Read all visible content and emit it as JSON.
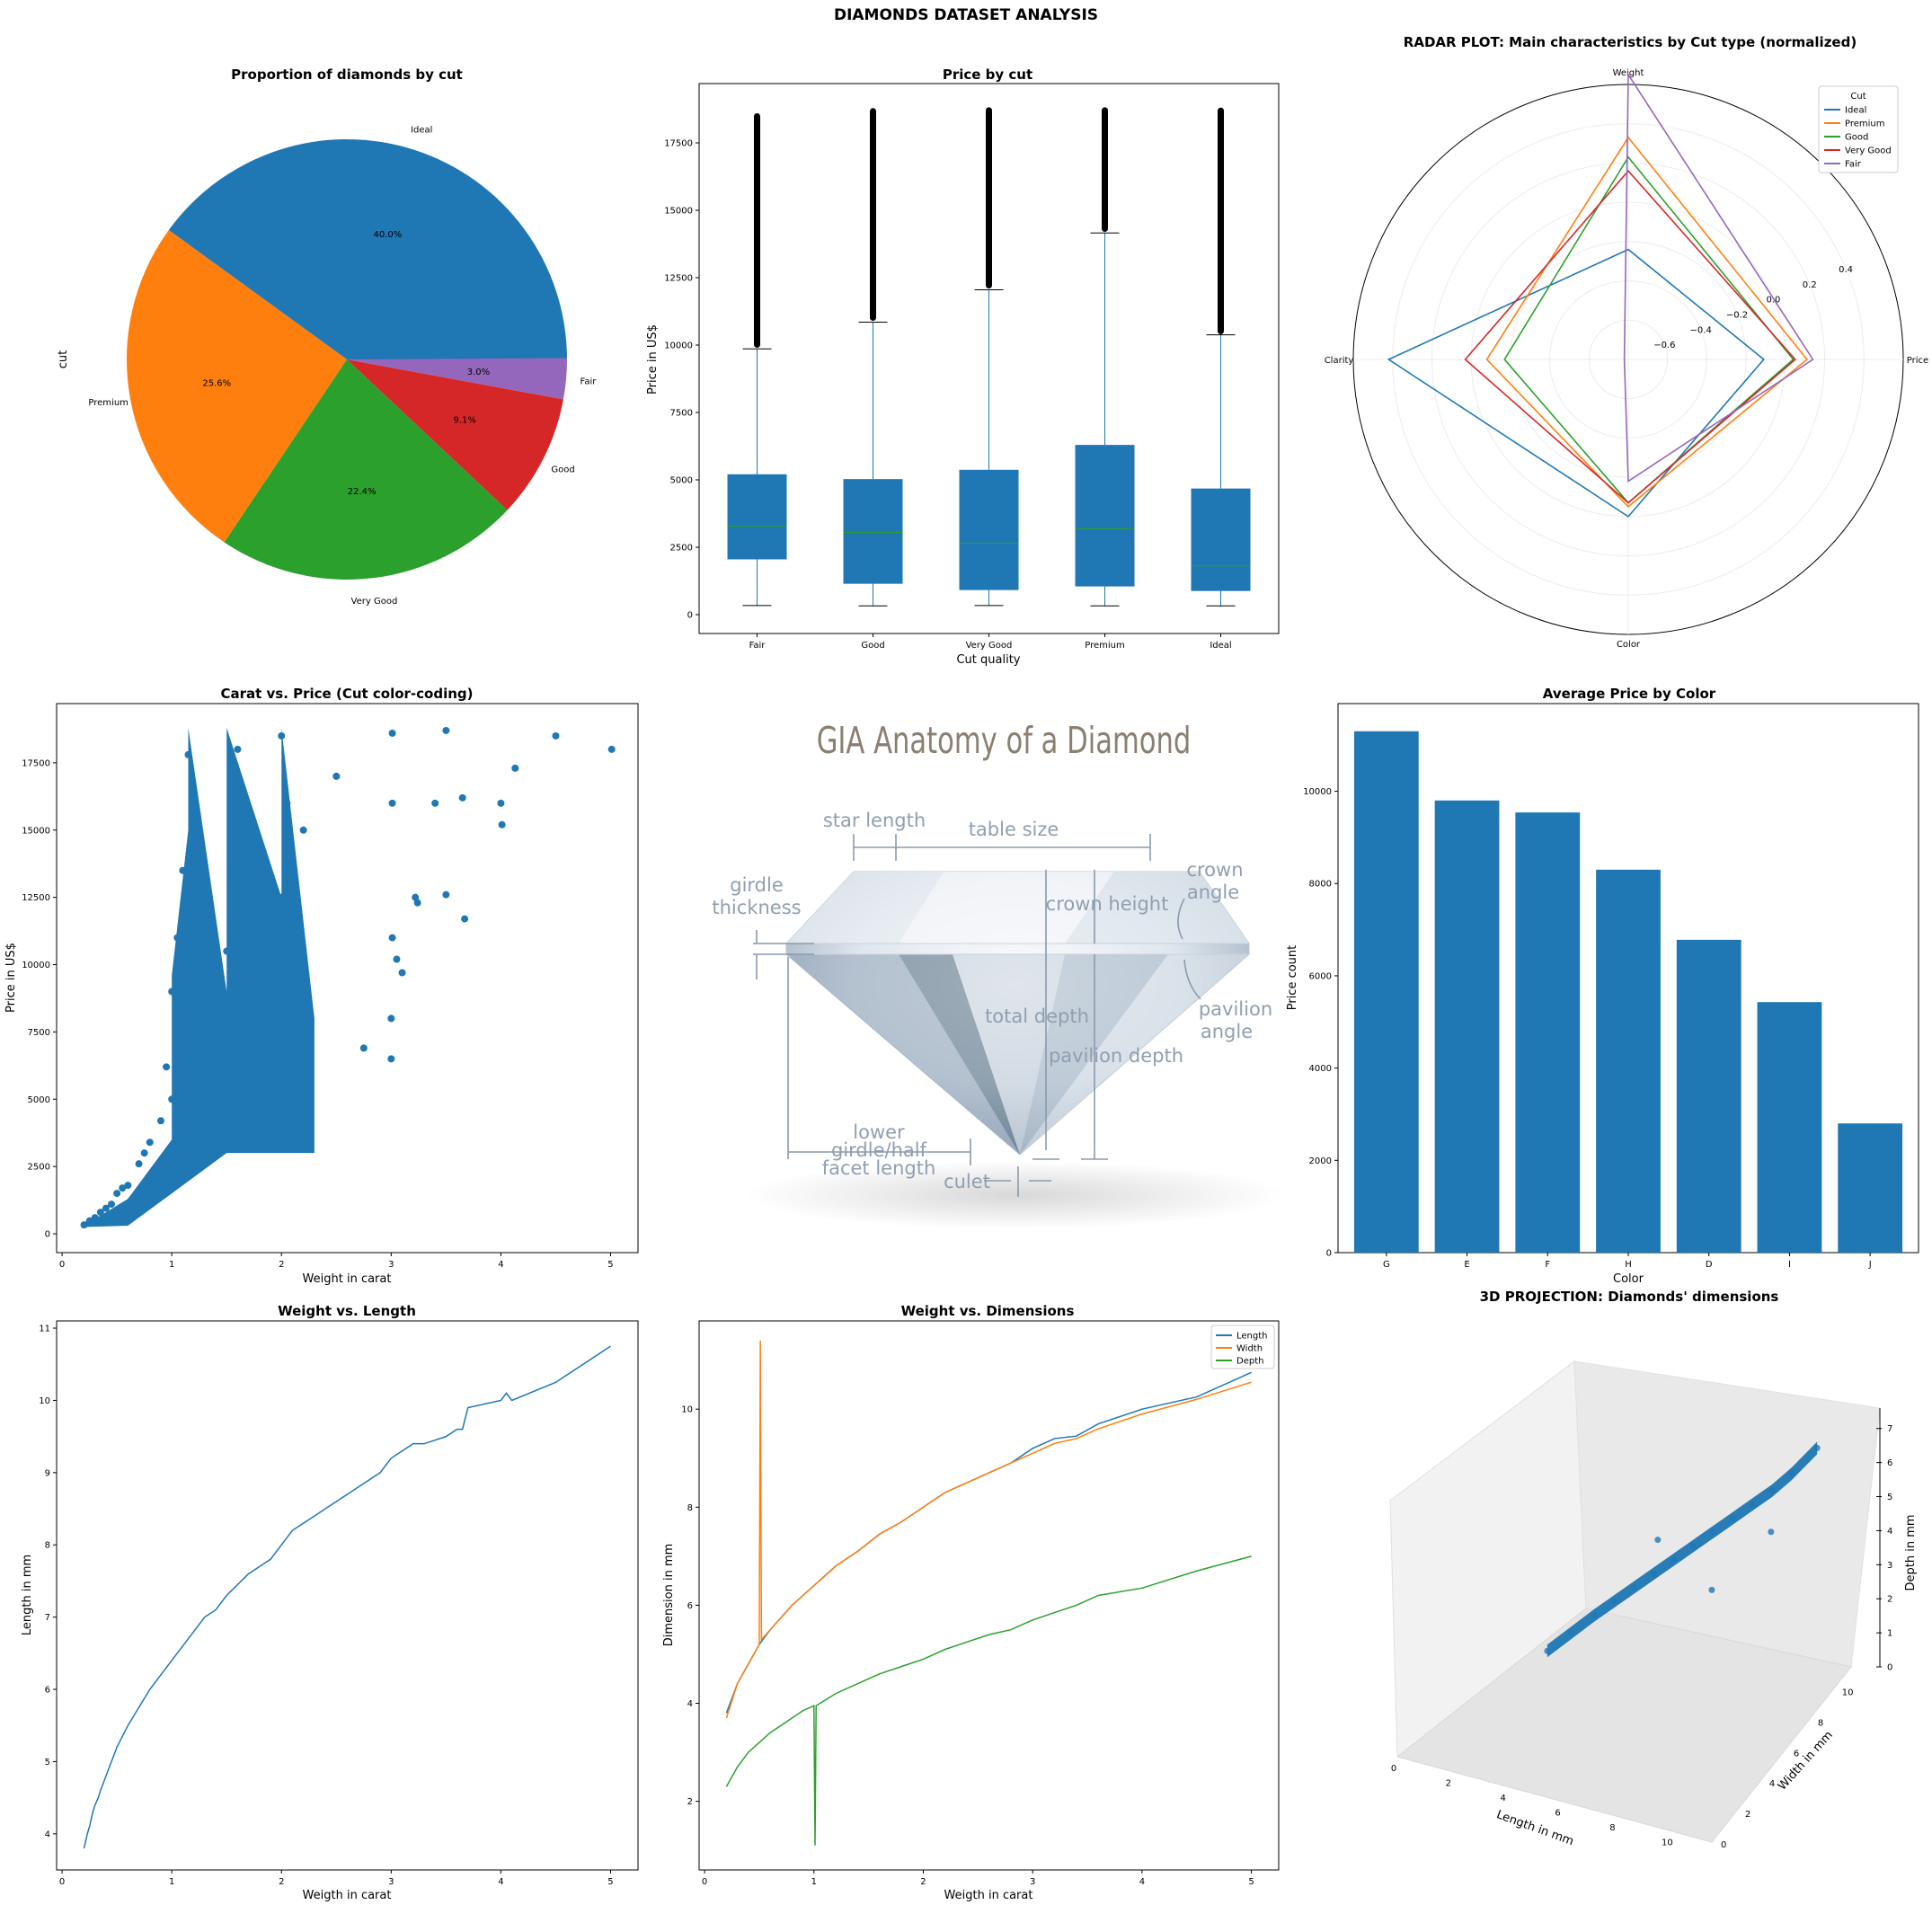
{
  "page": {
    "suptitle": "DIAMONDS DATASET ANALYSIS"
  },
  "chart_data": [
    {
      "id": "pie",
      "type": "pie",
      "title": "Proportion of diamonds by cut",
      "ylabel": "cut",
      "slices": [
        {
          "label": "Ideal",
          "pct": 40.0,
          "pct_label": "40.0%",
          "color": "#1f77b4"
        },
        {
          "label": "Premium",
          "pct": 25.6,
          "pct_label": "25.6%",
          "color": "#ff7f0e"
        },
        {
          "label": "Very Good",
          "pct": 22.4,
          "pct_label": "22.4%",
          "color": "#2ca02c"
        },
        {
          "label": "Good",
          "pct": 9.1,
          "pct_label": "9.1%",
          "color": "#d62728"
        },
        {
          "label": "Fair",
          "pct": 3.0,
          "pct_label": "3.0%",
          "color": "#9467bd"
        }
      ]
    },
    {
      "id": "box",
      "type": "box",
      "title": "Price by cut",
      "xlabel": "Cut quality",
      "ylabel": "Price in US$",
      "ylim": [
        -700,
        19700
      ],
      "yticks": [
        0,
        2500,
        5000,
        7500,
        10000,
        12500,
        15000,
        17500
      ],
      "categories": [
        "Fair",
        "Good",
        "Very Good",
        "Premium",
        "Ideal"
      ],
      "boxes": [
        {
          "min": 337,
          "q1": 2050,
          "median": 3282,
          "q3": 5206,
          "whisker_high": 9860,
          "outliers": [
            9900,
            18600
          ]
        },
        {
          "min": 327,
          "q1": 1145,
          "median": 3050,
          "q3": 5028,
          "whisker_high": 10850,
          "outliers": [
            10900,
            18790
          ]
        },
        {
          "min": 336,
          "q1": 912,
          "median": 2648,
          "q3": 5373,
          "whisker_high": 12050,
          "outliers": [
            12100,
            18820
          ]
        },
        {
          "min": 326,
          "q1": 1046,
          "median": 3185,
          "q3": 6296,
          "whisker_high": 14160,
          "outliers": [
            14200,
            18820
          ]
        },
        {
          "min": 326,
          "q1": 878,
          "median": 1810,
          "q3": 4678,
          "whisker_high": 10380,
          "outliers": [
            10400,
            18810
          ]
        }
      ],
      "box_color": "#1f77b4",
      "median_color": "#2ca02c"
    },
    {
      "id": "radar",
      "type": "radar",
      "title": "RADAR PLOT: Main characteristics by Cut type (normalized)",
      "axes": [
        "Price",
        "Weight",
        "Clarity",
        "Color"
      ],
      "rlim": [
        -0.8,
        0.6
      ],
      "rticks": [
        -0.6,
        -0.4,
        -0.2,
        0.0,
        0.2,
        0.4
      ],
      "rtick_labels": [
        "−0.6",
        "−0.4",
        "−0.2",
        "0.0",
        "0.2",
        "0.4"
      ],
      "legend_title": "Cut",
      "legend_loc": "upper right",
      "series": [
        {
          "name": "Ideal",
          "color": "#1f77b4",
          "values": [
            -0.11,
            -0.24,
            0.42,
            -0.0
          ]
        },
        {
          "name": "Premium",
          "color": "#ff7f0e",
          "values": [
            0.11,
            0.33,
            -0.08,
            -0.05
          ]
        },
        {
          "name": "Good",
          "color": "#2ca02c",
          "values": [
            0.04,
            0.23,
            -0.17,
            -0.07
          ]
        },
        {
          "name": "Very Good",
          "color": "#d62728",
          "values": [
            0.05,
            0.16,
            0.03,
            -0.07
          ]
        },
        {
          "name": "Fair",
          "color": "#9467bd",
          "values": [
            0.14,
            0.65,
            -0.78,
            -0.18
          ]
        }
      ]
    },
    {
      "id": "scatter",
      "type": "scatter",
      "title": "Carat vs. Price (Cut color-coding)",
      "xlabel": "Weight in carat",
      "ylabel": "Price in US$",
      "xlim": [
        -0.05,
        5.25
      ],
      "ylim": [
        -700,
        19700
      ],
      "xticks": [
        0,
        1,
        2,
        3,
        4,
        5
      ],
      "yticks": [
        0,
        2500,
        5000,
        7500,
        10000,
        12500,
        15000,
        17500
      ],
      "color": "#1f77b4",
      "points": [
        [
          0.2,
          330
        ],
        [
          0.25,
          480
        ],
        [
          0.3,
          600
        ],
        [
          0.35,
          800
        ],
        [
          0.4,
          950
        ],
        [
          0.45,
          1100
        ],
        [
          0.5,
          1500
        ],
        [
          0.55,
          1700
        ],
        [
          0.6,
          1800
        ],
        [
          0.7,
          2600
        ],
        [
          0.75,
          3000
        ],
        [
          0.8,
          3400
        ],
        [
          0.9,
          4200
        ],
        [
          0.95,
          6200
        ],
        [
          1.0,
          5000
        ],
        [
          1.0,
          9000
        ],
        [
          1.05,
          11000
        ],
        [
          1.1,
          13500
        ],
        [
          1.15,
          17800
        ],
        [
          1.2,
          7000
        ],
        [
          1.3,
          9500
        ],
        [
          1.5,
          10500
        ],
        [
          1.55,
          15000
        ],
        [
          1.6,
          18000
        ],
        [
          1.7,
          12000
        ],
        [
          1.8,
          14000
        ],
        [
          2.0,
          12500
        ],
        [
          2.0,
          18500
        ],
        [
          2.05,
          16000
        ],
        [
          2.2,
          15000
        ],
        [
          2.5,
          17000
        ],
        [
          2.75,
          6900
        ],
        [
          3.0,
          6500
        ],
        [
          3.0,
          8000
        ],
        [
          3.01,
          11000
        ],
        [
          3.01,
          16000
        ],
        [
          3.01,
          18600
        ],
        [
          3.05,
          10200
        ],
        [
          3.1,
          9700
        ],
        [
          3.22,
          12500
        ],
        [
          3.24,
          12300
        ],
        [
          3.4,
          16000
        ],
        [
          3.5,
          12600
        ],
        [
          3.5,
          18700
        ],
        [
          3.65,
          16200
        ],
        [
          3.67,
          11700
        ],
        [
          4.0,
          16000
        ],
        [
          4.01,
          15200
        ],
        [
          4.13,
          17300
        ],
        [
          4.5,
          18500
        ],
        [
          5.01,
          18000
        ]
      ],
      "cloud": [
        [
          0.2,
          330
        ],
        [
          0.4,
          800
        ],
        [
          0.6,
          1300
        ],
        [
          0.8,
          2400
        ],
        [
          1.0,
          3500
        ],
        [
          1.0,
          9600
        ],
        [
          1.15,
          15000
        ],
        [
          1.15,
          18800
        ],
        [
          1.5,
          9000
        ],
        [
          1.5,
          18800
        ],
        [
          2.0,
          12500
        ],
        [
          2.0,
          18800
        ],
        [
          2.3,
          8000
        ],
        [
          2.3,
          3000
        ],
        [
          1.5,
          3000
        ],
        [
          1.0,
          1500
        ],
        [
          0.6,
          300
        ],
        [
          0.2,
          250
        ]
      ]
    },
    {
      "id": "anatomy",
      "type": "image",
      "title": "GIA Anatomy of a Diamond",
      "labels": {
        "star_length": "star length",
        "table_size": "table size",
        "girdle_1": "girdle",
        "girdle_2": "thickness",
        "crown_height": "crown height",
        "crown_angle_1": "crown",
        "crown_angle_2": "angle",
        "total_depth": "total depth",
        "pavilion_depth": "pavilion depth",
        "pavilion_angle_1": "pavilion",
        "pavilion_angle_2": "angle",
        "lower_1": "lower",
        "lower_2": "girdle/half",
        "lower_3": "facet length",
        "culet": "culet"
      }
    },
    {
      "id": "bar",
      "type": "bar",
      "title": "Average Price by Color",
      "xlabel": "Color",
      "ylabel": "Price count",
      "ylim": [
        0,
        11900
      ],
      "yticks": [
        0,
        2000,
        4000,
        6000,
        8000,
        10000
      ],
      "categories": [
        "G",
        "E",
        "F",
        "H",
        "D",
        "I",
        "J"
      ],
      "values": [
        11300,
        9800,
        9540,
        8300,
        6780,
        5430,
        2800
      ],
      "color": "#1f77b4"
    },
    {
      "id": "wl",
      "type": "line",
      "title": "Weight vs. Length",
      "xlabel": "Weigth in carat",
      "ylabel": "Length in mm",
      "xlim": [
        -0.05,
        5.25
      ],
      "ylim": [
        3.5,
        11.1
      ],
      "xticks": [
        0,
        1,
        2,
        3,
        4,
        5
      ],
      "yticks": [
        4,
        5,
        6,
        7,
        8,
        9,
        10,
        11
      ],
      "series": [
        {
          "name": "Length",
          "color": "#1f77b4",
          "x": [
            0.2,
            0.23,
            0.25,
            0.28,
            0.3,
            0.33,
            0.35,
            0.4,
            0.45,
            0.5,
            0.6,
            0.7,
            0.8,
            0.9,
            1.0,
            1.1,
            1.2,
            1.3,
            1.4,
            1.5,
            1.6,
            1.7,
            1.8,
            1.9,
            2.0,
            2.05,
            2.1,
            2.2,
            2.3,
            2.4,
            2.5,
            2.6,
            2.7,
            2.8,
            2.9,
            3.0,
            3.1,
            3.2,
            3.3,
            3.4,
            3.5,
            3.6,
            3.65,
            3.7,
            4.0,
            4.05,
            4.1,
            4.5,
            5.0
          ],
          "y": [
            3.8,
            4.0,
            4.1,
            4.3,
            4.4,
            4.5,
            4.6,
            4.8,
            5.0,
            5.2,
            5.5,
            5.75,
            6.0,
            6.2,
            6.4,
            6.6,
            6.8,
            7.0,
            7.1,
            7.3,
            7.45,
            7.6,
            7.7,
            7.8,
            8.0,
            8.1,
            8.2,
            8.3,
            8.4,
            8.5,
            8.6,
            8.7,
            8.8,
            8.9,
            9.0,
            9.2,
            9.3,
            9.4,
            9.4,
            9.45,
            9.5,
            9.6,
            9.6,
            9.9,
            10.0,
            10.1,
            10.0,
            10.25,
            10.75
          ]
        }
      ]
    },
    {
      "id": "wd",
      "type": "line",
      "title": "Weight vs. Dimensions",
      "xlabel": "Weigth in carat",
      "ylabel": "Dimension in mm",
      "xlim": [
        -0.05,
        5.25
      ],
      "ylim": [
        0.6,
        11.8
      ],
      "xticks": [
        0,
        1,
        2,
        3,
        4,
        5
      ],
      "yticks": [
        2,
        4,
        6,
        8,
        10
      ],
      "legend_loc": "upper right",
      "series": [
        {
          "name": "Length",
          "color": "#1f77b4",
          "x": [
            0.2,
            0.3,
            0.4,
            0.5,
            0.6,
            0.7,
            0.8,
            0.9,
            1.0,
            1.2,
            1.4,
            1.6,
            1.8,
            2.0,
            2.2,
            2.4,
            2.6,
            2.8,
            3.0,
            3.2,
            3.4,
            3.6,
            4.0,
            4.5,
            5.0
          ],
          "y": [
            3.8,
            4.4,
            4.8,
            5.2,
            5.5,
            5.75,
            6.0,
            6.2,
            6.4,
            6.8,
            7.1,
            7.45,
            7.7,
            8.0,
            8.3,
            8.5,
            8.7,
            8.9,
            9.2,
            9.4,
            9.45,
            9.7,
            10.0,
            10.25,
            10.75
          ]
        },
        {
          "name": "Width",
          "color": "#ff7f0e",
          "x": [
            0.2,
            0.3,
            0.4,
            0.5,
            0.51,
            0.52,
            0.6,
            0.7,
            0.8,
            0.9,
            1.0,
            1.2,
            1.4,
            1.6,
            1.8,
            2.0,
            2.2,
            2.4,
            2.6,
            2.8,
            3.0,
            3.2,
            3.4,
            3.6,
            4.0,
            4.5,
            5.0
          ],
          "y": [
            3.7,
            4.4,
            4.8,
            5.2,
            11.4,
            5.3,
            5.5,
            5.75,
            6.0,
            6.2,
            6.4,
            6.8,
            7.1,
            7.45,
            7.7,
            8.0,
            8.3,
            8.5,
            8.7,
            8.9,
            9.1,
            9.3,
            9.4,
            9.6,
            9.9,
            10.2,
            10.55
          ]
        },
        {
          "name": "Depth",
          "color": "#2ca02c",
          "x": [
            0.2,
            0.3,
            0.4,
            0.5,
            0.6,
            0.7,
            0.8,
            0.9,
            1.0,
            1.01,
            1.02,
            1.2,
            1.4,
            1.6,
            1.8,
            2.0,
            2.2,
            2.4,
            2.6,
            2.8,
            3.0,
            3.2,
            3.4,
            3.6,
            4.0,
            4.5,
            5.0
          ],
          "y": [
            2.3,
            2.7,
            3.0,
            3.2,
            3.4,
            3.55,
            3.7,
            3.85,
            3.95,
            1.1,
            3.95,
            4.2,
            4.4,
            4.6,
            4.75,
            4.9,
            5.1,
            5.25,
            5.4,
            5.5,
            5.7,
            5.85,
            6.0,
            6.2,
            6.35,
            6.7,
            7.0
          ]
        }
      ]
    },
    {
      "id": "proj3d",
      "type": "scatter3d",
      "title": "3D PROJECTION: Diamonds' dimensions",
      "xlabel": "Length in mm",
      "ylabel": "Width in mm",
      "zlabel": "Depth in mm",
      "xticks": [
        0,
        2,
        4,
        6,
        8,
        10
      ],
      "yticks": [
        0,
        2,
        4,
        6,
        8,
        10
      ],
      "zticks": [
        0,
        1,
        2,
        3,
        4,
        5,
        6,
        7
      ],
      "color": "#1f77b4",
      "points": [
        [
          3.8,
          3.8,
          2.3
        ],
        [
          4.4,
          4.4,
          2.7
        ],
        [
          5.0,
          5.0,
          3.1
        ],
        [
          5.5,
          5.5,
          3.4
        ],
        [
          6.0,
          6.0,
          3.7
        ],
        [
          6.5,
          6.5,
          4.0
        ],
        [
          7.0,
          7.0,
          4.3
        ],
        [
          7.5,
          7.5,
          4.6
        ],
        [
          8.0,
          8.0,
          4.9
        ],
        [
          8.5,
          8.5,
          5.2
        ],
        [
          9.0,
          9.0,
          5.5
        ],
        [
          9.5,
          9.5,
          5.8
        ],
        [
          10.0,
          10.0,
          6.2
        ],
        [
          10.7,
          10.5,
          6.9
        ],
        [
          6.6,
          6.6,
          5.0
        ],
        [
          8.0,
          7.9,
          3.2
        ],
        [
          9.5,
          9.4,
          4.6
        ]
      ]
    }
  ]
}
